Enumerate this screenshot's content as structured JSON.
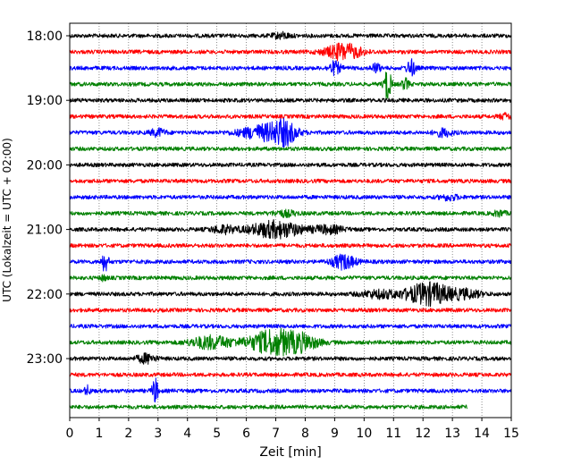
{
  "chart_data": {
    "type": "line",
    "title": "",
    "xlabel": "Zeit  [min]",
    "ylabel": "UTC (Lokalzeit = UTC + 02:00)",
    "xlim": [
      0,
      15
    ],
    "x_ticks": [
      "0",
      "1",
      "2",
      "3",
      "4",
      "5",
      "6",
      "7",
      "8",
      "9",
      "10",
      "11",
      "12",
      "13",
      "14",
      "15"
    ],
    "y_tick_labels": [
      "18:00",
      "19:00",
      "20:00",
      "21:00",
      "22:00",
      "23:00"
    ],
    "grid": "vertical dotted",
    "trace_colors": [
      "#000000",
      "#ff0000",
      "#0000ff",
      "#008000"
    ],
    "traces": [
      {
        "start": "18:00",
        "color": "#000000",
        "end_min": 15,
        "events": [
          {
            "t": 7.2,
            "a": 0.3,
            "w": 0.3
          }
        ]
      },
      {
        "start": "18:15",
        "color": "#ff0000",
        "end_min": 15,
        "events": [
          {
            "t": 9.3,
            "a": 0.9,
            "w": 0.6
          }
        ]
      },
      {
        "start": "18:30",
        "color": "#0000ff",
        "end_min": 15,
        "events": [
          {
            "t": 9.0,
            "a": 0.7,
            "w": 0.2
          },
          {
            "t": 10.4,
            "a": 0.5,
            "w": 0.15
          },
          {
            "t": 11.6,
            "a": 0.9,
            "w": 0.15
          }
        ]
      },
      {
        "start": "18:45",
        "color": "#008000",
        "end_min": 15,
        "events": [
          {
            "t": 10.8,
            "a": 1.8,
            "w": 0.12
          },
          {
            "t": 11.4,
            "a": 0.6,
            "w": 0.12
          }
        ]
      },
      {
        "start": "19:00",
        "color": "#000000",
        "end_min": 15,
        "events": []
      },
      {
        "start": "19:15",
        "color": "#ff0000",
        "end_min": 15,
        "events": [
          {
            "t": 14.8,
            "a": 0.3,
            "w": 0.2
          }
        ]
      },
      {
        "start": "19:30",
        "color": "#0000ff",
        "end_min": 15,
        "events": [
          {
            "t": 3.0,
            "a": 0.4,
            "w": 0.25
          },
          {
            "t": 6.6,
            "a": 0.8,
            "w": 0.8
          },
          {
            "t": 7.3,
            "a": 1.1,
            "w": 0.4
          },
          {
            "t": 12.7,
            "a": 0.4,
            "w": 0.3
          }
        ]
      },
      {
        "start": "19:45",
        "color": "#008000",
        "end_min": 15,
        "events": []
      },
      {
        "start": "20:00",
        "color": "#000000",
        "end_min": 15,
        "events": []
      },
      {
        "start": "20:15",
        "color": "#ff0000",
        "end_min": 15,
        "events": []
      },
      {
        "start": "20:30",
        "color": "#0000ff",
        "end_min": 15,
        "events": [
          {
            "t": 12.9,
            "a": 0.3,
            "w": 0.3
          }
        ]
      },
      {
        "start": "20:45",
        "color": "#008000",
        "end_min": 15,
        "events": [
          {
            "t": 7.3,
            "a": 0.3,
            "w": 0.4
          },
          {
            "t": 14.6,
            "a": 0.3,
            "w": 0.2
          }
        ]
      },
      {
        "start": "21:00",
        "color": "#000000",
        "end_min": 15,
        "events": [
          {
            "t": 5.2,
            "a": 0.4,
            "w": 0.4
          },
          {
            "t": 7.0,
            "a": 0.9,
            "w": 0.9
          },
          {
            "t": 8.8,
            "a": 0.4,
            "w": 0.5
          }
        ]
      },
      {
        "start": "21:15",
        "color": "#ff0000",
        "end_min": 15,
        "events": []
      },
      {
        "start": "21:30",
        "color": "#0000ff",
        "end_min": 15,
        "events": [
          {
            "t": 1.2,
            "a": 1.0,
            "w": 0.12
          },
          {
            "t": 9.3,
            "a": 0.8,
            "w": 0.4
          }
        ]
      },
      {
        "start": "21:45",
        "color": "#008000",
        "end_min": 15,
        "events": [
          {
            "t": 1.15,
            "a": 0.3,
            "w": 0.1
          }
        ]
      },
      {
        "start": "22:00",
        "color": "#000000",
        "end_min": 15,
        "events": [
          {
            "t": 10.5,
            "a": 0.4,
            "w": 0.6
          },
          {
            "t": 12.2,
            "a": 1.2,
            "w": 0.8
          },
          {
            "t": 13.5,
            "a": 0.4,
            "w": 0.5
          }
        ]
      },
      {
        "start": "22:15",
        "color": "#ff0000",
        "end_min": 15,
        "events": []
      },
      {
        "start": "22:30",
        "color": "#0000ff",
        "end_min": 15,
        "events": []
      },
      {
        "start": "22:45",
        "color": "#008000",
        "end_min": 15,
        "events": [
          {
            "t": 4.8,
            "a": 0.7,
            "w": 0.7
          },
          {
            "t": 7.0,
            "a": 1.4,
            "w": 0.9
          },
          {
            "t": 8.0,
            "a": 0.5,
            "w": 0.5
          }
        ]
      },
      {
        "start": "23:00",
        "color": "#000000",
        "end_min": 15,
        "events": [
          {
            "t": 2.6,
            "a": 0.5,
            "w": 0.3
          }
        ]
      },
      {
        "start": "23:15",
        "color": "#ff0000",
        "end_min": 15,
        "events": []
      },
      {
        "start": "23:30",
        "color": "#0000ff",
        "end_min": 15,
        "events": [
          {
            "t": 0.6,
            "a": 0.5,
            "w": 0.1
          },
          {
            "t": 2.9,
            "a": 1.4,
            "w": 0.1
          }
        ]
      },
      {
        "start": "23:45",
        "color": "#008000",
        "end_min": 13.5,
        "events": []
      }
    ]
  }
}
